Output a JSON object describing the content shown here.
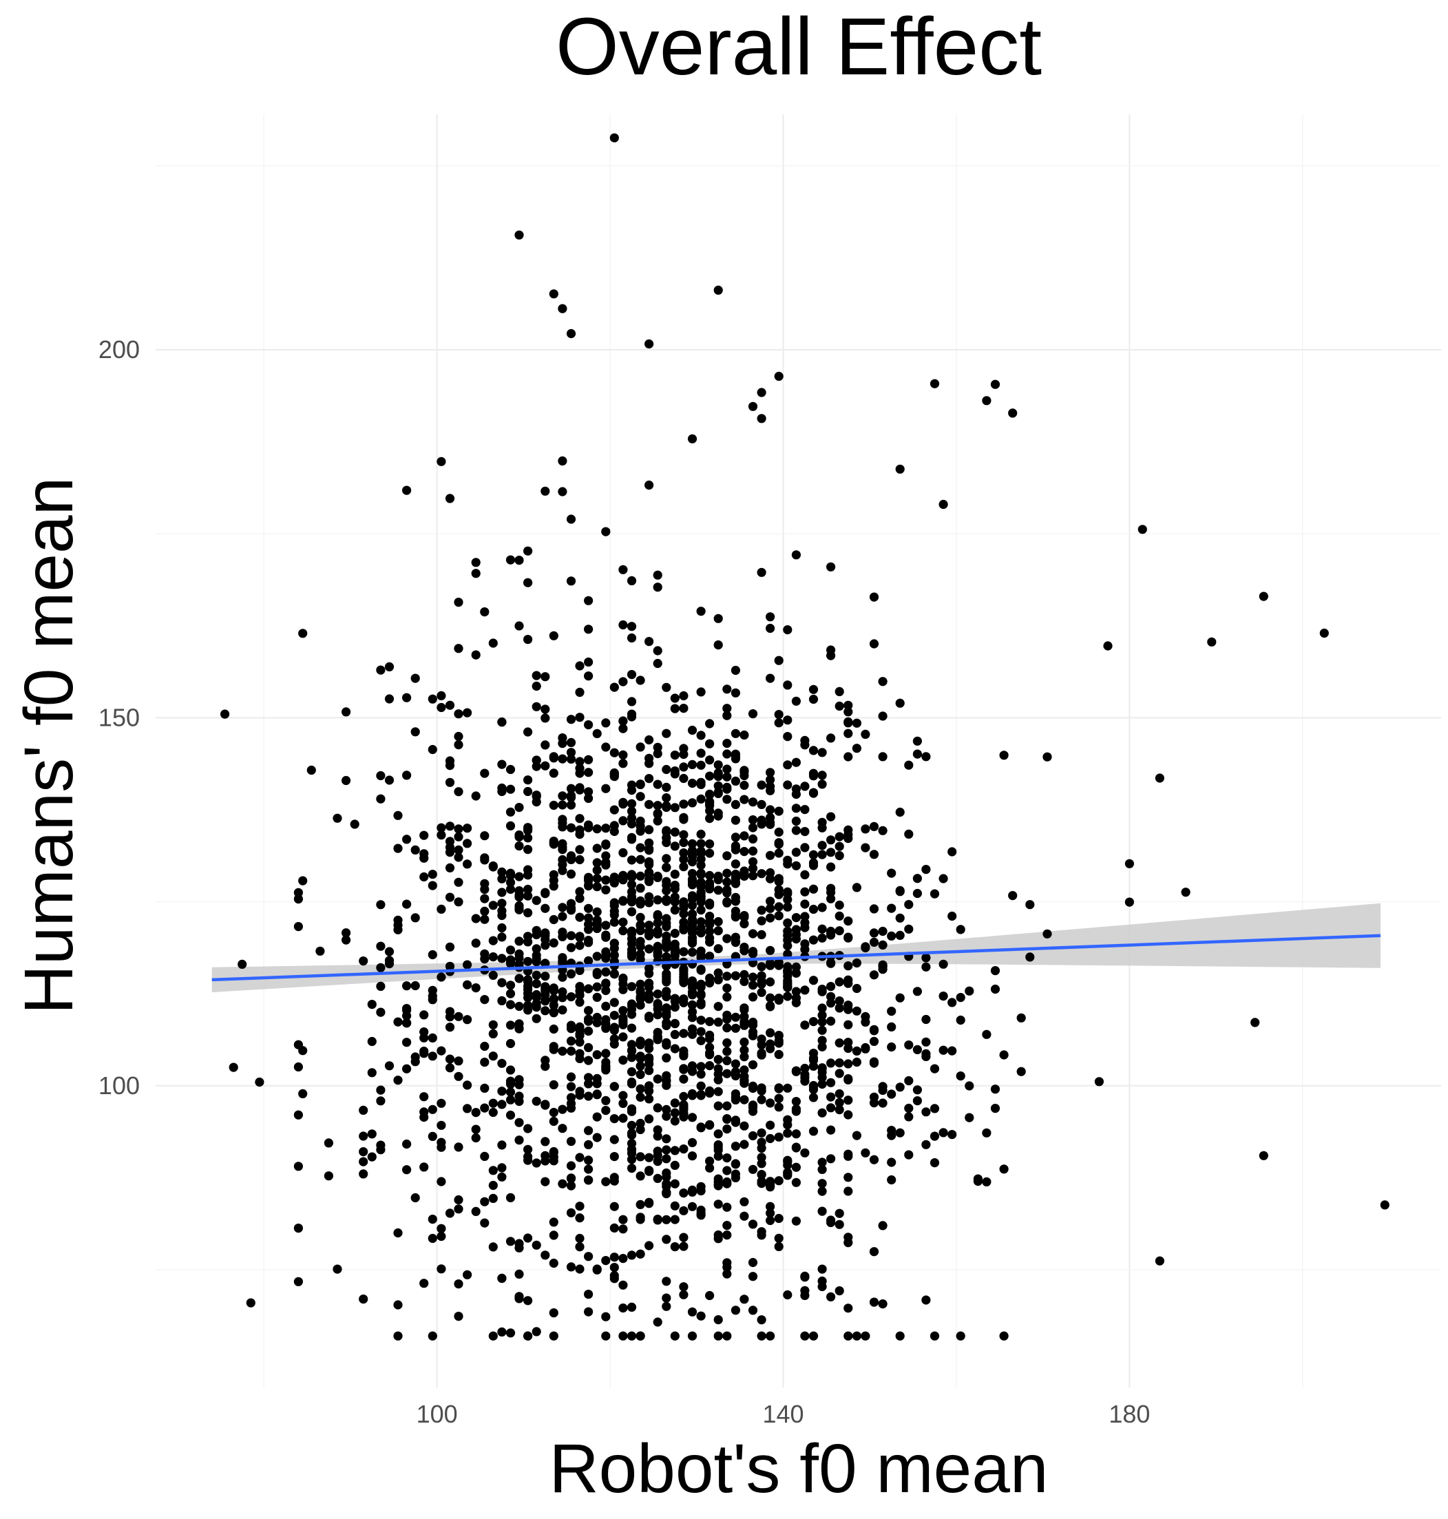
{
  "chart_data": {
    "type": "scatter",
    "title": "Overall Effect",
    "xlabel": "Robot's f0 mean",
    "ylabel": "Humans' f0 mean",
    "xlim": [
      67.5,
      216
    ],
    "ylim": [
      59,
      232
    ],
    "x_ticks": [
      100,
      140,
      180
    ],
    "y_ticks": [
      100,
      150,
      200
    ],
    "grid": true,
    "point_color": "#000000",
    "fit_line": {
      "method": "linear",
      "color": "#3366FF",
      "band_color": "#CCCCCC",
      "x_range": [
        74,
        209
      ],
      "y_start": 114.4,
      "y_end": 120.4,
      "se_at_start": 1.7,
      "se_at_center": 0.6,
      "se_at_end": 4.4
    },
    "points": {
      "n": 2000,
      "x_center": 126,
      "x_sd": 16,
      "y_center": 115,
      "y_sd": 22,
      "outliers": [
        [
          120.5,
          228.8
        ],
        [
          109.5,
          215.6
        ],
        [
          113.5,
          207.6
        ],
        [
          132.5,
          208.1
        ],
        [
          114.5,
          205.6
        ],
        [
          124.5,
          200.8
        ],
        [
          115.5,
          202.2
        ],
        [
          139.5,
          196.4
        ],
        [
          137.5,
          194.2
        ],
        [
          136.5,
          192.3
        ],
        [
          157.5,
          195.4
        ],
        [
          164.5,
          195.3
        ],
        [
          163.5,
          193.1
        ],
        [
          166.5,
          191.4
        ],
        [
          129.5,
          187.9
        ],
        [
          114.5,
          184.9
        ],
        [
          96.5,
          180.9
        ],
        [
          101.5,
          179.8
        ],
        [
          158.5,
          179.0
        ],
        [
          181.5,
          175.6
        ],
        [
          75.5,
          150.5
        ],
        [
          77.5,
          116.5
        ],
        [
          76.5,
          102.5
        ],
        [
          79.5,
          100.5
        ],
        [
          78.5,
          70.5
        ],
        [
          195.5,
          166.5
        ],
        [
          202.5,
          161.5
        ],
        [
          189.5,
          160.3
        ],
        [
          195.5,
          90.5
        ],
        [
          209.5,
          83.8
        ],
        [
          183.5,
          76.2
        ],
        [
          137.5,
          68.2
        ],
        [
          121.5,
          69.8
        ],
        [
          142.5,
          71.5
        ],
        [
          128.5,
          71.6
        ],
        [
          150.5,
          166.4
        ],
        [
          145.5,
          170.5
        ],
        [
          186.5,
          126.3
        ],
        [
          194.5,
          108.6
        ],
        [
          183.5,
          141.8
        ]
      ]
    }
  }
}
